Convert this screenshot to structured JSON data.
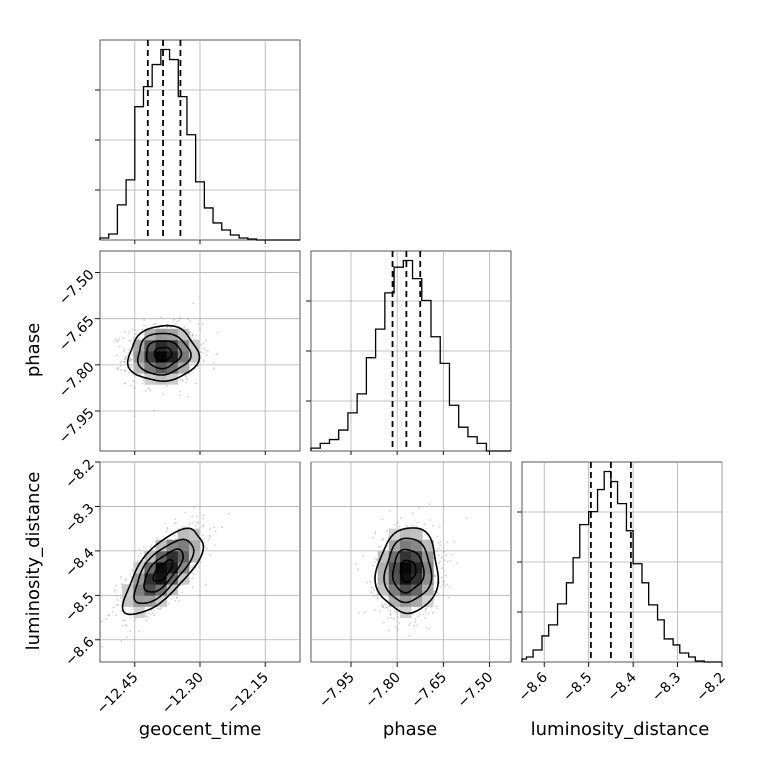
{
  "chart_data": {
    "type": "corner",
    "parameters": [
      {
        "key": "geocent_time",
        "label": "geocent_time",
        "range": [
          -12.53,
          -12.07
        ],
        "ticks": [
          -12.45,
          -12.3,
          -12.15
        ],
        "tick_labels": [
          "−12.45",
          "−12.30",
          "−12.15"
        ],
        "quantiles": [
          -12.42,
          -12.385,
          -12.345
        ],
        "histogram": {
          "edges": [
            -12.53,
            -12.51,
            -12.49,
            -12.47,
            -12.45,
            -12.43,
            -12.41,
            -12.39,
            -12.37,
            -12.35,
            -12.33,
            -12.31,
            -12.29,
            -12.27,
            -12.25,
            -12.23,
            -12.21,
            -12.19,
            -12.17
          ],
          "counts": [
            2,
            6,
            35,
            60,
            133,
            153,
            175,
            190,
            180,
            143,
            105,
            58,
            32,
            17,
            10,
            5,
            2,
            1
          ]
        }
      },
      {
        "key": "phase",
        "label": "phase",
        "range": [
          -8.08,
          -7.43
        ],
        "ticks": [
          -7.95,
          -7.8,
          -7.65,
          -7.5
        ],
        "tick_labels": [
          "−7.95",
          "−7.80",
          "−7.65",
          "−7.50"
        ],
        "quantiles": [
          -7.815,
          -7.77,
          -7.725
        ],
        "histogram": {
          "edges": [
            -8.08,
            -8.05,
            -8.02,
            -7.99,
            -7.96,
            -7.93,
            -7.9,
            -7.87,
            -7.84,
            -7.81,
            -7.78,
            -7.75,
            -7.72,
            -7.69,
            -7.66,
            -7.63,
            -7.6,
            -7.57,
            -7.54,
            -7.51
          ],
          "counts": [
            3,
            8,
            12,
            22,
            40,
            60,
            98,
            128,
            166,
            193,
            200,
            181,
            158,
            120,
            92,
            48,
            25,
            15,
            8
          ]
        }
      },
      {
        "key": "luminosity_distance",
        "label": "luminosity_distance",
        "range": [
          -8.65,
          -8.2
        ],
        "ticks": [
          -8.6,
          -8.5,
          -8.4,
          -8.3,
          -8.2
        ],
        "tick_labels": [
          "−8.6",
          "−8.5",
          "−8.4",
          "−8.3",
          "−8.2"
        ],
        "quantiles": [
          -8.495,
          -8.45,
          -8.405
        ],
        "histogram": {
          "edges": [
            -8.65,
            -8.64,
            -8.625,
            -8.605,
            -8.59,
            -8.57,
            -8.55,
            -8.535,
            -8.52,
            -8.5,
            -8.48,
            -8.465,
            -8.45,
            -8.435,
            -8.415,
            -8.4,
            -8.38,
            -8.365,
            -8.345,
            -8.33,
            -8.31,
            -8.295,
            -8.275,
            -8.26,
            -8.24
          ],
          "counts": [
            3,
            5,
            12,
            26,
            37,
            58,
            79,
            104,
            137,
            150,
            172,
            190,
            180,
            158,
            131,
            98,
            79,
            57,
            42,
            23,
            17,
            9,
            5,
            1
          ]
        }
      }
    ],
    "pairs": [
      {
        "x": "geocent_time",
        "y": "phase",
        "mean": [
          -12.385,
          -7.765
        ],
        "sigma": [
          0.04,
          0.045
        ],
        "corr": 0.05,
        "y_ticks": [
          -7.5,
          -7.65,
          -7.8,
          -7.95
        ],
        "y_tick_labels": [
          "−7.50",
          "−7.65",
          "−7.80",
          "−7.95"
        ]
      },
      {
        "x": "geocent_time",
        "y": "luminosity_distance",
        "mean": [
          -12.385,
          -8.445
        ],
        "sigma": [
          0.045,
          0.048
        ],
        "corr": 0.7,
        "y_ticks": [
          -8.2,
          -8.3,
          -8.4,
          -8.5,
          -8.6
        ],
        "y_tick_labels": [
          "−8.2",
          "−8.3",
          "−8.4",
          "−8.5",
          "−8.6"
        ]
      },
      {
        "x": "phase",
        "y": "luminosity_distance",
        "mean": [
          -7.765,
          -8.445
        ],
        "sigma": [
          0.05,
          0.048
        ],
        "corr": 0.05
      }
    ],
    "contour_levels_sigma": [
      0.5,
      1.0,
      1.5,
      2.0
    ],
    "grid": true
  }
}
